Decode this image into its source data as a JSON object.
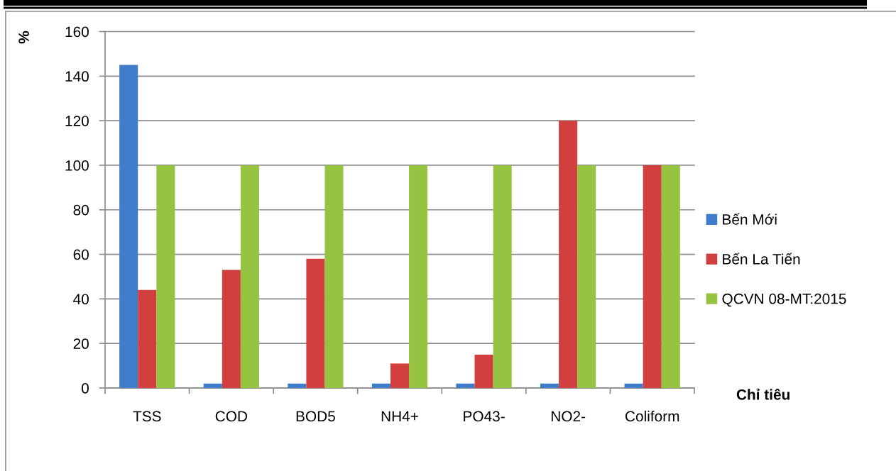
{
  "chart_data": {
    "type": "bar",
    "ylabel": "%",
    "xlabel": "Chỉ tiêu",
    "categories": [
      "TSS",
      "COD",
      "BOD5",
      "NH4+",
      "PO43-",
      "NO2-",
      "Coliform"
    ],
    "series": [
      {
        "name": "Bến Mới",
        "color": "#3f7ccb",
        "values": [
          145,
          2,
          2,
          2,
          2,
          2,
          2
        ]
      },
      {
        "name": "Bến La Tiến",
        "color": "#d23f3f",
        "values": [
          44,
          53,
          58,
          11,
          15,
          120,
          100
        ]
      },
      {
        "name": "QCVN 08-MT:2015",
        "color": "#97c343",
        "values": [
          100,
          100,
          100,
          100,
          100,
          100,
          100
        ]
      }
    ],
    "ylim": [
      0,
      160
    ],
    "yticks": [
      0,
      20,
      40,
      60,
      80,
      100,
      120,
      140,
      160
    ],
    "grid": "y",
    "legend": "right"
  }
}
